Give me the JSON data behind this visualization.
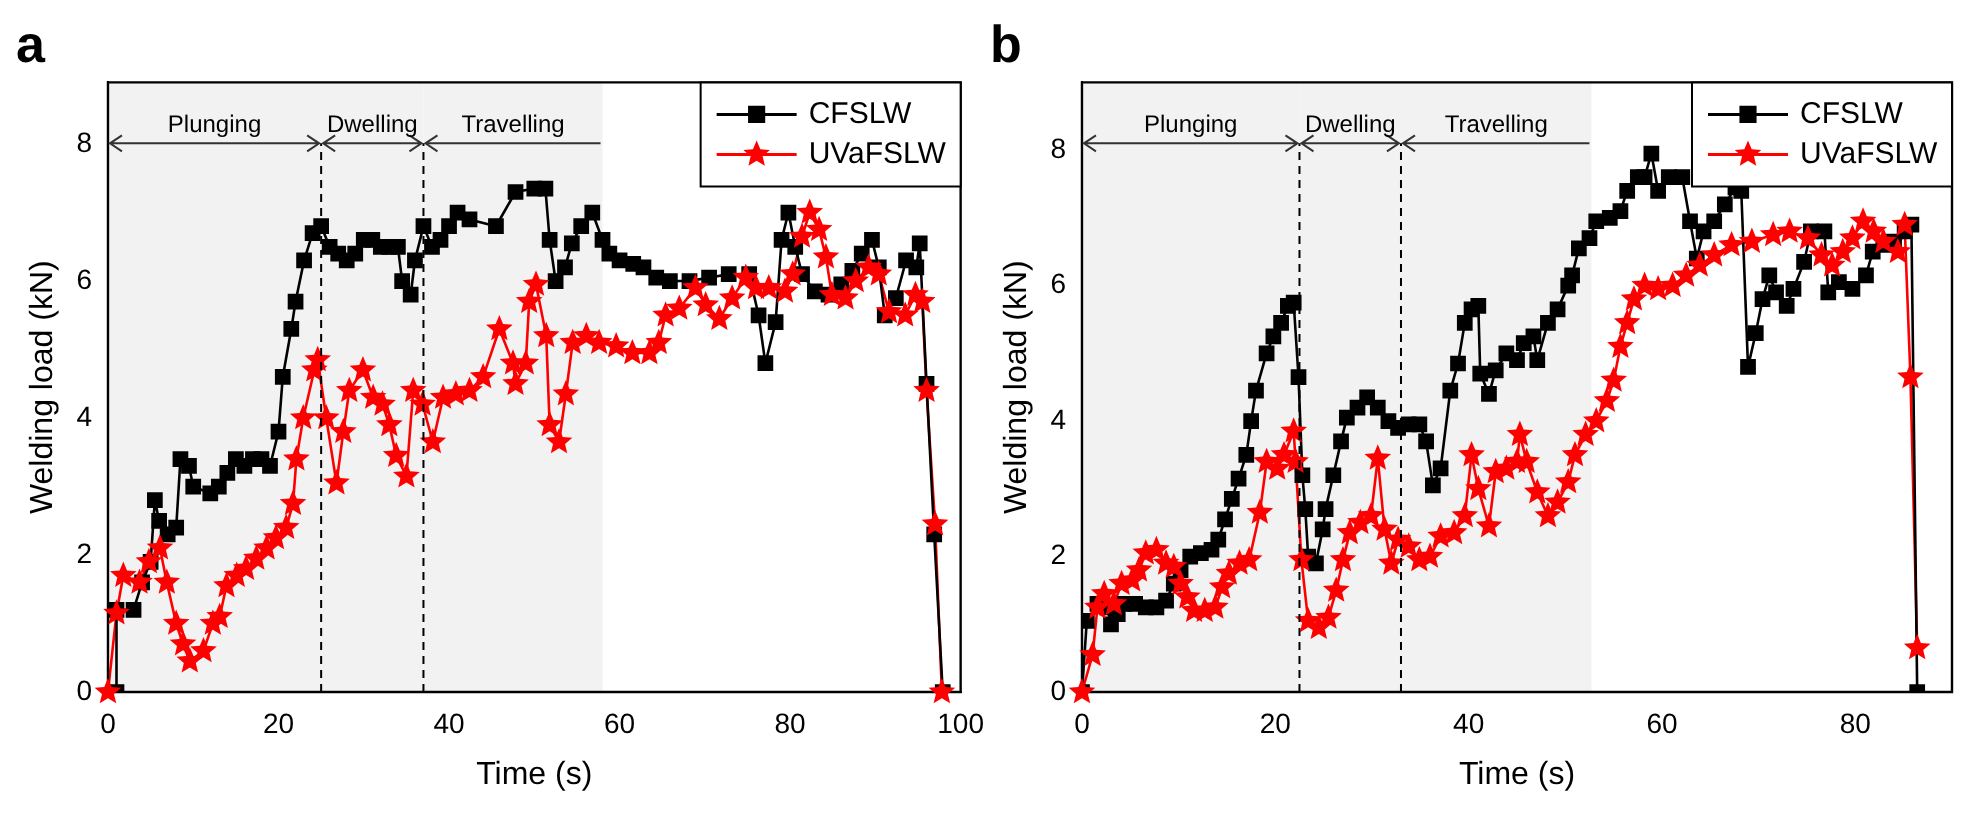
{
  "chart_data": [
    {
      "type": "line",
      "title": "a",
      "xlabel": "Time (s)",
      "ylabel": "Welding load (kN)",
      "xlim": [
        0,
        100
      ],
      "xticks": [
        0,
        20,
        40,
        60,
        80,
        100
      ],
      "ylim": [
        0,
        8.9
      ],
      "yticks": [
        0,
        2,
        4,
        6,
        8
      ],
      "grid": false,
      "legend": "top right",
      "ref_lines": [
        {
          "axis": "x",
          "value": 25,
          "line_style": "dashed"
        },
        {
          "axis": "x",
          "value": 37,
          "line_style": "dashed"
        }
      ],
      "bands": [
        {
          "axis": "x",
          "from": 0,
          "to": 25,
          "label": "Plunging",
          "color": "#f2f2f2"
        },
        {
          "axis": "x",
          "from": 25,
          "to": 37,
          "label": "Dwelling",
          "color": "#f2f2f2"
        },
        {
          "axis": "x",
          "from": 37,
          "to": 58,
          "label": "Travelling",
          "color": "#f2f2f2"
        }
      ],
      "series": [
        {
          "name": "CFSLW",
          "color": "#000000",
          "marker": "square",
          "x": [
            1,
            1,
            3,
            4,
            5,
            5.5,
            6,
            7,
            8,
            8.5,
            9.5,
            10,
            12,
            13,
            14,
            15,
            16,
            17,
            18,
            19,
            20,
            20.5,
            21.5,
            22,
            23,
            24,
            25,
            26,
            27,
            28,
            29,
            30,
            31,
            32,
            33,
            34,
            34.5,
            35.5,
            36,
            37,
            38,
            39,
            40,
            41,
            42.4,
            45.5,
            47.8,
            50,
            51.3,
            51.8,
            52.5,
            53.6,
            54.4,
            55.5,
            56.8,
            58,
            58.8,
            60,
            61.6,
            62.8,
            64.3,
            65.9,
            68.2,
            70.5,
            72.8,
            75.2,
            76.3,
            77.1,
            78.3,
            79,
            79.8,
            80.6,
            81.4,
            82.9,
            84.5,
            86,
            87.3,
            88.4,
            89.6,
            90.4,
            91.1,
            92.4,
            93.6,
            94.8,
            95.2,
            96,
            96.9,
            97.9
          ],
          "values": [
            0,
            1.2,
            1.2,
            1.6,
            1.9,
            2.8,
            2.5,
            2.3,
            2.4,
            3.4,
            3.3,
            3.0,
            2.9,
            3.0,
            3.2,
            3.4,
            3.3,
            3.4,
            3.4,
            3.3,
            3.8,
            4.6,
            5.3,
            5.7,
            6.3,
            6.7,
            6.8,
            6.5,
            6.4,
            6.3,
            6.4,
            6.6,
            6.6,
            6.5,
            6.5,
            6.5,
            6.0,
            5.8,
            6.3,
            6.8,
            6.5,
            6.6,
            6.8,
            7.0,
            6.9,
            6.8,
            7.3,
            7.35,
            7.35,
            6.6,
            6.0,
            6.2,
            6.55,
            6.8,
            7.0,
            6.6,
            6.4,
            6.3,
            6.25,
            6.2,
            6.05,
            6.0,
            6.0,
            6.05,
            6.1,
            6.1,
            5.5,
            4.8,
            5.4,
            6.6,
            7.0,
            6.5,
            6.1,
            5.85,
            5.8,
            5.95,
            6.15,
            6.4,
            6.6,
            6.2,
            5.5,
            5.75,
            6.3,
            6.2,
            6.55,
            4.5,
            2.3,
            0
          ]
        },
        {
          "name": "UVaFSLW",
          "color": "#ff0000",
          "marker": "star",
          "x": [
            0,
            1,
            1.8,
            3.7,
            4.8,
            6.1,
            6.9,
            8,
            8.8,
            9.6,
            11.2,
            12.3,
            13.1,
            13.9,
            15.1,
            16.2,
            17.4,
            18.6,
            19.7,
            20.9,
            21.7,
            22.1,
            22.9,
            24.2,
            24.6,
            25.6,
            26.8,
            27.6,
            28.3,
            29.9,
            31.1,
            32.2,
            33,
            33.8,
            35,
            35.8,
            36.9,
            38.1,
            39.3,
            40.8,
            42.4,
            44,
            45.9,
            47.5,
            47.8,
            49,
            49.4,
            50.2,
            51.4,
            51.8,
            52.9,
            53.7,
            54.5,
            56.1,
            57.6,
            59.6,
            61.5,
            63.5,
            64.6,
            65.4,
            67,
            68.9,
            70.1,
            71.7,
            73.2,
            74.8,
            76,
            77.5,
            79.4,
            80.3,
            81.4,
            82.3,
            83.4,
            84.2,
            84.9,
            86.5,
            87.7,
            89.2,
            90.4,
            91.6,
            93.5,
            94.7,
            95.5,
            96,
            97,
            97.8
          ],
          "values": [
            0,
            1.15,
            1.7,
            1.6,
            1.9,
            2.1,
            1.6,
            1.0,
            0.7,
            0.45,
            0.6,
            1.0,
            1.1,
            1.55,
            1.7,
            1.8,
            1.95,
            2.1,
            2.25,
            2.4,
            2.75,
            3.4,
            4.0,
            4.7,
            4.85,
            4.0,
            3.05,
            3.8,
            4.4,
            4.7,
            4.3,
            4.2,
            3.9,
            3.45,
            3.15,
            4.4,
            4.2,
            3.65,
            4.3,
            4.35,
            4.4,
            4.6,
            5.3,
            4.8,
            4.5,
            4.8,
            5.7,
            5.95,
            5.2,
            3.9,
            3.65,
            4.35,
            5.1,
            5.2,
            5.1,
            5.05,
            4.95,
            4.95,
            5.1,
            5.5,
            5.6,
            5.9,
            5.65,
            5.45,
            5.75,
            6.05,
            5.9,
            5.9,
            5.85,
            6.1,
            6.65,
            7.0,
            6.75,
            6.35,
            5.8,
            5.75,
            6.0,
            6.2,
            6.1,
            5.55,
            5.5,
            5.8,
            5.7,
            4.4,
            2.45,
            0
          ]
        }
      ]
    },
    {
      "type": "line",
      "title": "b",
      "xlabel": "Time (s)",
      "ylabel": "Welding load (kN)",
      "xlim": [
        0,
        90
      ],
      "xticks": [
        0,
        20,
        40,
        60,
        80
      ],
      "ylim": [
        0,
        9
      ],
      "yticks": [
        0,
        2,
        4,
        6,
        8
      ],
      "grid": false,
      "legend": "top right",
      "ref_lines": [
        {
          "axis": "x",
          "value": 22.5,
          "line_style": "dashed"
        },
        {
          "axis": "x",
          "value": 33,
          "line_style": "dashed"
        }
      ],
      "bands": [
        {
          "axis": "x",
          "from": 0,
          "to": 22.5,
          "label": "Plunging",
          "color": "#f2f2f2"
        },
        {
          "axis": "x",
          "from": 22.5,
          "to": 33,
          "label": "Dwelling",
          "color": "#f2f2f2"
        },
        {
          "axis": "x",
          "from": 33,
          "to": 52.7,
          "label": "Travelling",
          "color": "#f2f2f2"
        }
      ],
      "series": [
        {
          "name": "CFSLW",
          "color": "#000000",
          "marker": "square",
          "x": [
            0,
            0.5,
            1.6,
            2.6,
            3,
            3.7,
            4.4,
            5.5,
            6.6,
            7.7,
            8.7,
            9.5,
            10.2,
            11.2,
            12.3,
            13.4,
            14.1,
            14.8,
            15.5,
            16.2,
            17,
            17.5,
            18,
            19.1,
            19.8,
            20.6,
            21.3,
            21.9,
            22.4,
            22.8,
            23.1,
            23.4,
            24.2,
            24.9,
            25.2,
            26,
            26.8,
            27.4,
            28.5,
            29.5,
            30.6,
            31.7,
            32.7,
            33.8,
            34.9,
            35.6,
            36.3,
            37.1,
            38.1,
            38.9,
            39.6,
            40.3,
            41,
            41.2,
            42.1,
            42.8,
            43.9,
            45,
            45.7,
            46.7,
            47.1,
            48.2,
            49.2,
            50.3,
            50.7,
            51.4,
            52.5,
            53.2,
            54.6,
            55.7,
            56.4,
            57.5,
            58.2,
            58.9,
            59.6,
            60.7,
            62.1,
            62.9,
            63.6,
            64.3,
            65.4,
            66.5,
            67.6,
            68.2,
            68.9,
            69.7,
            70.4,
            71.1,
            71.8,
            72.9,
            73.6,
            74.7,
            75.4,
            76.8,
            77.2,
            78.3,
            79.7,
            81.1,
            81.8,
            82.9,
            84,
            85.1,
            85.8,
            86.4
          ],
          "values": [
            0,
            1.05,
            1.3,
            1.25,
            1.0,
            1.15,
            1.3,
            1.3,
            1.25,
            1.25,
            1.35,
            1.6,
            1.8,
            2.0,
            2.05,
            2.1,
            2.25,
            2.55,
            2.85,
            3.15,
            3.5,
            4.0,
            4.45,
            5.0,
            5.25,
            5.45,
            5.7,
            5.75,
            4.65,
            3.2,
            2.7,
            2.0,
            1.9,
            2.4,
            2.7,
            3.2,
            3.7,
            4.05,
            4.2,
            4.35,
            4.2,
            4.0,
            3.9,
            3.95,
            3.95,
            3.7,
            3.05,
            3.3,
            4.45,
            4.85,
            5.45,
            5.65,
            5.7,
            4.7,
            4.4,
            4.75,
            5.0,
            4.9,
            5.15,
            5.25,
            4.9,
            5.45,
            5.65,
            6.0,
            6.15,
            6.55,
            6.7,
            6.95,
            7.0,
            7.1,
            7.4,
            7.6,
            7.6,
            7.95,
            7.4,
            7.6,
            7.6,
            6.95,
            6.4,
            6.8,
            6.95,
            7.2,
            7.45,
            7.4,
            4.8,
            5.3,
            5.8,
            6.15,
            5.9,
            5.7,
            5.95,
            6.35,
            6.8,
            6.8,
            5.9,
            6.05,
            5.95,
            6.15,
            6.5,
            6.6,
            6.65,
            6.8,
            6.9,
            0
          ]
        },
        {
          "name": "UVaFSLW",
          "color": "#ff0000",
          "marker": "star",
          "x": [
            0,
            1.1,
            1.6,
            2.3,
            3.3,
            4.1,
            5.2,
            5.9,
            6.6,
            7.7,
            8.7,
            9.5,
            10.2,
            10.9,
            11.6,
            12.7,
            13.8,
            14.5,
            15.2,
            16.3,
            17.3,
            18.4,
            19.1,
            20.2,
            20.9,
            21.9,
            22.1,
            22.7,
            23.4,
            24.5,
            25.5,
            26.3,
            27,
            27.7,
            28.8,
            29.9,
            30.6,
            31.3,
            32,
            32.7,
            33.8,
            34.9,
            36,
            37.1,
            38.5,
            39.6,
            40.3,
            41,
            42.1,
            42.8,
            43.9,
            45,
            45.3,
            46,
            47.1,
            48.2,
            49.2,
            50.3,
            51,
            52.1,
            53.2,
            54.3,
            55,
            55.7,
            56.4,
            57.1,
            58.2,
            59.6,
            61.1,
            62.5,
            63.9,
            65.4,
            67.2,
            69.3,
            71.5,
            73.2,
            75.1,
            76.5,
            77.6,
            78.7,
            79.7,
            80.8,
            81.9,
            82.9,
            84.4,
            85.1,
            85.7,
            86.4
          ],
          "values": [
            0,
            0.55,
            1.25,
            1.45,
            1.3,
            1.6,
            1.65,
            1.8,
            2.05,
            2.1,
            1.9,
            1.85,
            1.6,
            1.4,
            1.2,
            1.2,
            1.25,
            1.55,
            1.75,
            1.9,
            1.95,
            2.65,
            3.4,
            3.3,
            3.5,
            3.85,
            3.4,
            1.95,
            1.05,
            0.95,
            1.1,
            1.5,
            1.95,
            2.35,
            2.5,
            2.6,
            3.45,
            2.4,
            1.9,
            2.25,
            2.15,
            1.95,
            2.0,
            2.3,
            2.35,
            2.6,
            3.5,
            3.0,
            2.45,
            3.25,
            3.3,
            3.4,
            3.8,
            3.4,
            2.95,
            2.6,
            2.8,
            3.1,
            3.5,
            3.8,
            4.0,
            4.3,
            4.6,
            5.1,
            5.45,
            5.8,
            6.0,
            5.95,
            6.0,
            6.15,
            6.3,
            6.45,
            6.6,
            6.65,
            6.75,
            6.8,
            6.7,
            6.45,
            6.3,
            6.5,
            6.7,
            6.95,
            6.8,
            6.65,
            6.5,
            6.9,
            4.65,
            0.65
          ]
        }
      ]
    }
  ]
}
